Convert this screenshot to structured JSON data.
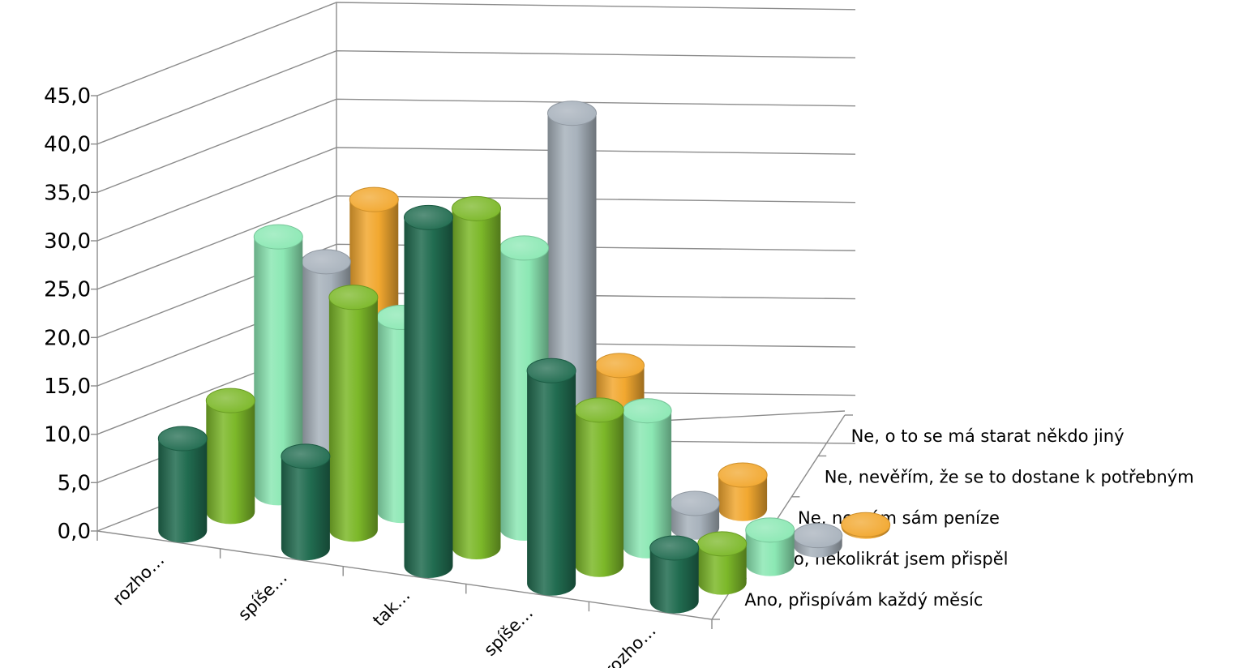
{
  "chart_data": {
    "type": "bar",
    "style": "3d-cylinder",
    "title": "",
    "xlabel": "",
    "ylabel": "",
    "ylim": [
      0,
      45
    ],
    "yticks": [
      "0,0",
      "5,0",
      "10,0",
      "15,0",
      "20,0",
      "25,0",
      "30,0",
      "35,0",
      "40,0",
      "45,0"
    ],
    "grid": true,
    "categories": [
      "rozho…",
      "spíše…",
      "tak…",
      "spíše…",
      "rozho…"
    ],
    "series": [
      {
        "name": "Ano, přispívám každý měsíc",
        "color": "#216c50",
        "values": [
          9.5,
          9.5,
          36.0,
          22.0,
          5.5
        ]
      },
      {
        "name": "Ano, několikrát jsem přispěl",
        "color": "#7cb829",
        "values": [
          11.5,
          24.0,
          35.0,
          16.0,
          4.0
        ]
      },
      {
        "name": "Ne, nemám sám peníze",
        "color": "#8ce8b4",
        "values": [
          26.5,
          20.0,
          29.0,
          14.0,
          3.5
        ]
      },
      {
        "name": "Ne, nevěřím, že se to dostane k potřebným",
        "color": "#a8b2bc",
        "values": [
          22.0,
          0.5,
          41.0,
          2.5,
          1.0
        ]
      },
      {
        "name": "Ne, o to se má starat někdo jiný",
        "color": "#f2a830",
        "values": [
          26.5,
          0.3,
          13.0,
          3.5,
          0.2
        ]
      }
    ]
  }
}
